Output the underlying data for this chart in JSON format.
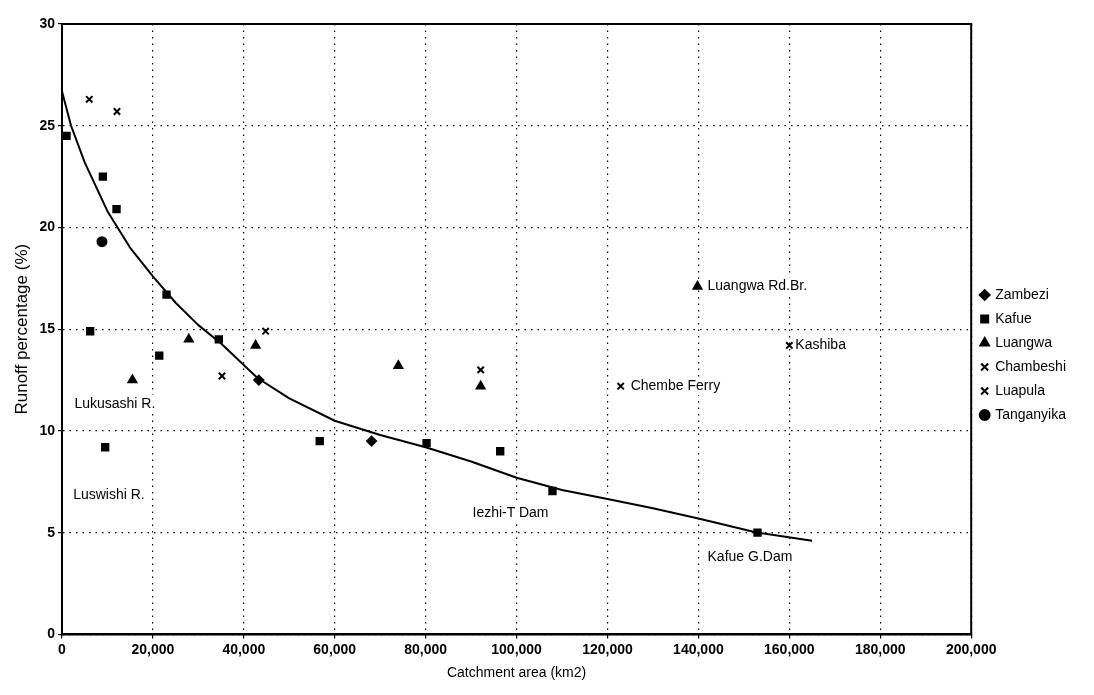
{
  "chart_data": {
    "type": "scatter",
    "xlabel": "Catchment area (km2)",
    "ylabel": "Runoff percentage (%)",
    "xlim": [
      0,
      200000
    ],
    "ylim": [
      0,
      30
    ],
    "xticks": [
      0,
      {
        "value": 20000,
        "label": "20,000"
      },
      {
        "value": 40000,
        "label": "40,000"
      },
      {
        "value": 60000,
        "label": "60,000"
      },
      {
        "value": 80000,
        "label": "80,000"
      },
      {
        "value": 100000,
        "label": "100,000"
      },
      {
        "value": 120000,
        "label": "120,000"
      },
      {
        "value": 140000,
        "label": "140,000"
      },
      {
        "value": 160000,
        "label": "160,000"
      },
      {
        "value": 180000,
        "label": "180,000"
      },
      {
        "value": 200000,
        "label": "200,000"
      }
    ],
    "yticks": [
      0,
      5,
      10,
      15,
      20,
      25,
      30
    ],
    "grid": true,
    "legend": "right",
    "series": [
      {
        "name": "Zambezi",
        "color": "#000000",
        "marker": "diamond",
        "x": [
          43300,
          68100
        ],
        "values": [
          12.5,
          9.5
        ]
      },
      {
        "name": "Kafue",
        "color": "#000000",
        "marker": "square",
        "x": [
          1000,
          9000,
          12000,
          23000,
          6200,
          21400,
          34500,
          9500,
          56700,
          80200,
          96400,
          107900,
          153000
        ],
        "values": [
          24.5,
          22.5,
          20.9,
          16.7,
          14.9,
          13.7,
          14.5,
          9.2,
          9.5,
          9.4,
          9.0,
          7.05,
          5.0
        ]
      },
      {
        "name": "Luangwa",
        "color": "#000000",
        "marker": "triangle",
        "x": [
          15500,
          27900,
          42600,
          74000,
          92100,
          139800
        ],
        "values": [
          12.5,
          14.5,
          14.2,
          13.2,
          12.2,
          17.1
        ]
      },
      {
        "name": "Chambeshi",
        "color": "#000000",
        "marker": "cross",
        "x": [
          6000,
          12100,
          35200,
          44800,
          92100
        ],
        "values": [
          26.3,
          25.7,
          12.7,
          14.9,
          13.0
        ]
      },
      {
        "name": "Luapula",
        "color": "#000000",
        "marker": "cross",
        "x": [
          122900,
          160000
        ],
        "values": [
          12.2,
          14.2
        ]
      },
      {
        "name": "Tanganyika",
        "color": "#000000",
        "marker": "circle",
        "x": [
          8800
        ],
        "values": [
          19.3
        ]
      },
      {
        "type": "line",
        "color": "#000000",
        "marker": "none",
        "x": [
          0,
          2000,
          5000,
          10000,
          15000,
          20000,
          25000,
          30000,
          35000,
          43000,
          50000,
          60000,
          70000,
          80000,
          90000,
          100000,
          110000,
          120000,
          130000,
          140000,
          153000,
          165000
        ],
        "values": [
          26.7,
          25,
          23.2,
          20.8,
          19,
          17.6,
          16.3,
          15.2,
          14.3,
          12.6,
          11.6,
          10.5,
          9.8,
          9.2,
          8.5,
          7.7,
          7.1,
          6.65,
          6.2,
          5.7,
          5.0,
          4.6
        ]
      }
    ],
    "annotations": [
      {
        "text": "Lukusashi R.",
        "x": 15500,
        "y": 12.5
      },
      {
        "text": "Luswishi R.",
        "x": 9500,
        "y": 9.2
      },
      {
        "text": "Luangwa Rd.Br.",
        "x": 139800,
        "y": 17.1
      },
      {
        "text": "Kashiba",
        "x": 160000,
        "y": 14.2
      },
      {
        "text": "Chembe Ferry",
        "x": 122900,
        "y": 12.2
      },
      {
        "text": "Iezhi-T Dam",
        "x": 107900,
        "y": 7.05
      },
      {
        "text": "Kafue G.Dam",
        "x": 153000,
        "y": 5.0
      }
    ]
  }
}
